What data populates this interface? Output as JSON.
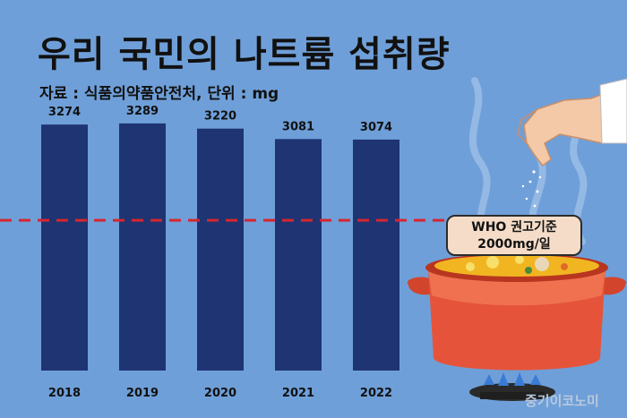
{
  "title": "우리 국민의 나트륨 섭취량",
  "subtitle": "자료 : 식품의약품안전처, 단위 : mg",
  "colors": {
    "background": "#6f9fd8",
    "bar": "#1f3472",
    "reference_line": "#d6262e",
    "label_box": "#f4dcc8"
  },
  "reference": {
    "line1": "WHO 권고기준",
    "line2": "2000mg/일"
  },
  "watermark": "중기이코노미",
  "illustration": {
    "items": [
      "hand-sprinkling-salt",
      "cooking-pot-with-soup",
      "gas-burner-flame",
      "steam"
    ]
  },
  "chart_data": {
    "type": "bar",
    "categories": [
      "2018",
      "2019",
      "2020",
      "2021",
      "2022"
    ],
    "values": [
      3274,
      3289,
      3220,
      3081,
      3074
    ],
    "reference_value": 2000,
    "title": "우리 국민의 나트륨 섭취량",
    "xlabel": "",
    "ylabel": "",
    "ylim": [
      0,
      3700
    ],
    "grid": false,
    "legend": "none",
    "data_labels": true
  }
}
